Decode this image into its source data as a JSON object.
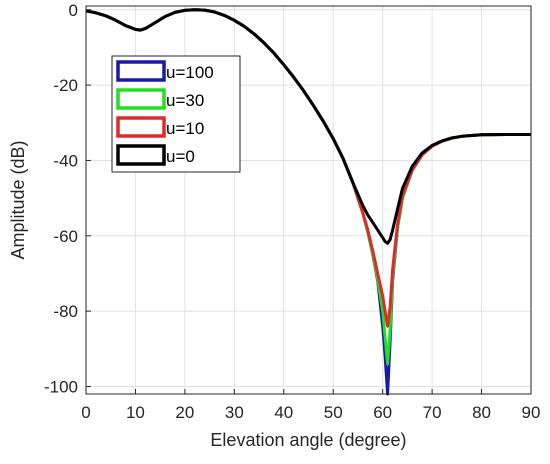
{
  "chart_data": {
    "type": "line",
    "xlabel": "Elevation angle (degree)",
    "ylabel": "Amplitude (dB)",
    "xlim": [
      0,
      90
    ],
    "ylim": [
      -102,
      1
    ],
    "xticks": [
      0,
      10,
      20,
      30,
      40,
      50,
      60,
      70,
      80,
      90
    ],
    "yticks": [
      0,
      -20,
      -40,
      -60,
      -80,
      -100
    ],
    "grid": true,
    "legend_position": "top-left",
    "series": [
      {
        "name": "u=100",
        "color": "#1a1aa8",
        "x": [
          0,
          2,
          4,
          6,
          8,
          10,
          11,
          12,
          14,
          16,
          18,
          20,
          22,
          24,
          26,
          28,
          30,
          32,
          34,
          36,
          38,
          40,
          42,
          44,
          46,
          48,
          50,
          52,
          54,
          56,
          57,
          58,
          59,
          60,
          60.5,
          61,
          61.5,
          62,
          63,
          64,
          66,
          68,
          70,
          72,
          74,
          76,
          80,
          85,
          90
        ],
        "y": [
          -0.3,
          -0.8,
          -1.6,
          -2.8,
          -4.2,
          -5.2,
          -5.4,
          -5.0,
          -3.4,
          -1.8,
          -0.7,
          -0.15,
          0,
          -0.1,
          -0.6,
          -1.5,
          -2.8,
          -4.4,
          -6.4,
          -8.8,
          -11.5,
          -14.6,
          -17.9,
          -21.5,
          -25.4,
          -29.6,
          -34.2,
          -39.5,
          -46,
          -54,
          -59,
          -65,
          -72,
          -84,
          -92,
          -102,
          -88,
          -72,
          -58,
          -50,
          -42.5,
          -38.5,
          -36.2,
          -34.9,
          -34.1,
          -33.6,
          -33.2,
          -33.1,
          -33.1
        ]
      },
      {
        "name": "u=30",
        "color": "#22dd22",
        "x": [
          0,
          2,
          4,
          6,
          8,
          10,
          11,
          12,
          14,
          16,
          18,
          20,
          22,
          24,
          26,
          28,
          30,
          32,
          34,
          36,
          38,
          40,
          42,
          44,
          46,
          48,
          50,
          52,
          54,
          56,
          57,
          58,
          59,
          60,
          60.5,
          61,
          61.5,
          62,
          63,
          64,
          66,
          68,
          70,
          72,
          74,
          76,
          80,
          85,
          90
        ],
        "y": [
          -0.3,
          -0.8,
          -1.6,
          -2.8,
          -4.2,
          -5.2,
          -5.4,
          -5.0,
          -3.4,
          -1.8,
          -0.7,
          -0.15,
          0,
          -0.1,
          -0.6,
          -1.5,
          -2.8,
          -4.4,
          -6.4,
          -8.8,
          -11.5,
          -14.6,
          -17.9,
          -21.5,
          -25.4,
          -29.6,
          -34.2,
          -39.5,
          -46,
          -54,
          -59,
          -65,
          -71.5,
          -80,
          -87,
          -94,
          -85,
          -71,
          -58,
          -50,
          -42.5,
          -38.5,
          -36.2,
          -34.9,
          -34.1,
          -33.6,
          -33.2,
          -33.1,
          -33.1
        ]
      },
      {
        "name": "u=10",
        "color": "#e02a2a",
        "x": [
          0,
          2,
          4,
          6,
          8,
          10,
          11,
          12,
          14,
          16,
          18,
          20,
          22,
          24,
          26,
          28,
          30,
          32,
          34,
          36,
          38,
          40,
          42,
          44,
          46,
          48,
          50,
          52,
          54,
          56,
          57,
          58,
          59,
          60,
          60.5,
          61,
          61.5,
          62,
          63,
          64,
          66,
          68,
          70,
          72,
          74,
          76,
          80,
          85,
          90
        ],
        "y": [
          -0.3,
          -0.8,
          -1.6,
          -2.8,
          -4.2,
          -5.2,
          -5.4,
          -5.0,
          -3.4,
          -1.8,
          -0.7,
          -0.15,
          0,
          -0.1,
          -0.6,
          -1.5,
          -2.8,
          -4.4,
          -6.4,
          -8.8,
          -11.5,
          -14.6,
          -17.9,
          -21.5,
          -25.4,
          -29.6,
          -34.2,
          -39.5,
          -46,
          -54,
          -58.5,
          -64,
          -70,
          -76,
          -80,
          -84,
          -79,
          -69,
          -57,
          -49.5,
          -42.5,
          -38.5,
          -36.2,
          -34.9,
          -34.1,
          -33.6,
          -33.2,
          -33.1,
          -33.1
        ]
      },
      {
        "name": "u=0",
        "color": "#000000",
        "x": [
          0,
          2,
          4,
          6,
          8,
          10,
          11,
          12,
          14,
          16,
          18,
          20,
          22,
          24,
          26,
          28,
          30,
          32,
          34,
          36,
          38,
          40,
          42,
          44,
          46,
          48,
          50,
          52,
          54,
          56,
          57,
          58,
          59,
          60,
          60.5,
          61,
          61.5,
          62,
          63,
          64,
          66,
          68,
          70,
          72,
          74,
          76,
          80,
          85,
          90
        ],
        "y": [
          -0.3,
          -0.8,
          -1.6,
          -2.8,
          -4.2,
          -5.2,
          -5.4,
          -5.0,
          -3.4,
          -1.8,
          -0.7,
          -0.15,
          0,
          -0.1,
          -0.6,
          -1.5,
          -2.8,
          -4.4,
          -6.4,
          -8.8,
          -11.5,
          -14.6,
          -17.9,
          -21.5,
          -25.4,
          -29.6,
          -34.2,
          -39.5,
          -46,
          -52,
          -54.5,
          -56.5,
          -58.5,
          -60.5,
          -61.5,
          -62,
          -61,
          -58.5,
          -53,
          -47.5,
          -41.5,
          -38,
          -36,
          -34.8,
          -34.0,
          -33.6,
          -33.2,
          -33.1,
          -33.1
        ]
      }
    ]
  }
}
